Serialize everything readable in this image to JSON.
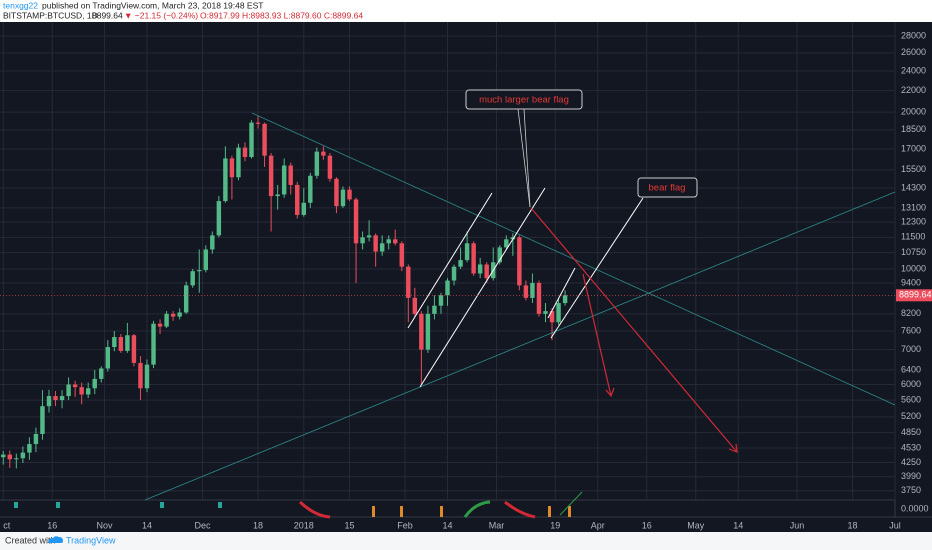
{
  "header": {
    "publisher": "tenxgg22",
    "published_text": "published on TradingView.com, March 23, 2018 19:48 EST",
    "symbol": "BITSTAMP:BTCUSD, 1D",
    "last": "8899.64",
    "change": "▼ −21.15 (−0.24%)",
    "ohlc": "O:8917.99 H:8983.93 L:8879.60 C:8899.64"
  },
  "footer": {
    "created": "Created with",
    "brand": "TradingView"
  },
  "chart_data": {
    "type": "candlestick",
    "log_scale": true,
    "grid": true,
    "up_color": "#53b987",
    "down_color": "#eb4d5c",
    "annotations": [
      "much larger bear flag",
      "bear flag"
    ],
    "indicator_label": "0.0000",
    "last_price": {
      "value": 8899.64,
      "label": "8899.64"
    },
    "xlim": [
      "2017-09-30",
      "2018-07-01"
    ],
    "xticks": [
      {
        "value": "2017-10-01",
        "label": "ct"
      },
      {
        "value": "2017-10-16",
        "label": "16"
      },
      {
        "value": "2017-11-01",
        "label": "Nov"
      },
      {
        "value": "2017-11-14",
        "label": "14"
      },
      {
        "value": "2017-12-01",
        "label": "Dec"
      },
      {
        "value": "2017-12-18",
        "label": "18"
      },
      {
        "value": "2018-01-01",
        "label": "2018"
      },
      {
        "value": "2018-01-15",
        "label": "15"
      },
      {
        "value": "2018-02-01",
        "label": "Feb"
      },
      {
        "value": "2018-02-14",
        "label": "14"
      },
      {
        "value": "2018-03-01",
        "label": "Mar"
      },
      {
        "value": "2018-03-19",
        "label": "19"
      },
      {
        "value": "2018-04-01",
        "label": "Apr"
      },
      {
        "value": "2018-04-16",
        "label": "16"
      },
      {
        "value": "2018-05-01",
        "label": "May"
      },
      {
        "value": "2018-05-14",
        "label": "14"
      },
      {
        "value": "2018-06-01",
        "label": "Jun"
      },
      {
        "value": "2018-06-18",
        "label": "18"
      },
      {
        "value": "2018-07-01",
        "label": "Jul"
      }
    ],
    "ylim": [
      3600,
      29800
    ],
    "yticks": [
      3750,
      3990,
      4250,
      4530,
      4850,
      5200,
      5600,
      6000,
      6400,
      7000,
      7600,
      8200,
      9400,
      10000,
      10750,
      11500,
      12300,
      13100,
      14300,
      15500,
      17000,
      18500,
      20000,
      22000,
      24000,
      26000,
      28000
    ],
    "x": [
      "2017-10-01",
      "2017-10-03",
      "2017-10-05",
      "2017-10-07",
      "2017-10-09",
      "2017-10-11",
      "2017-10-13",
      "2017-10-15",
      "2017-10-17",
      "2017-10-19",
      "2017-10-21",
      "2017-10-23",
      "2017-10-25",
      "2017-10-27",
      "2017-10-29",
      "2017-10-31",
      "2017-11-02",
      "2017-11-04",
      "2017-11-06",
      "2017-11-08",
      "2017-11-10",
      "2017-11-12",
      "2017-11-14",
      "2017-11-16",
      "2017-11-18",
      "2017-11-20",
      "2017-11-22",
      "2017-11-24",
      "2017-11-26",
      "2017-11-28",
      "2017-11-30",
      "2017-12-02",
      "2017-12-04",
      "2017-12-06",
      "2017-12-08",
      "2017-12-10",
      "2017-12-12",
      "2017-12-14",
      "2017-12-16",
      "2017-12-18",
      "2017-12-20",
      "2017-12-22",
      "2017-12-24",
      "2017-12-26",
      "2017-12-28",
      "2017-12-30",
      "2018-01-01",
      "2018-01-03",
      "2018-01-05",
      "2018-01-07",
      "2018-01-09",
      "2018-01-11",
      "2018-01-13",
      "2018-01-15",
      "2018-01-17",
      "2018-01-19",
      "2018-01-21",
      "2018-01-23",
      "2018-01-25",
      "2018-01-27",
      "2018-01-29",
      "2018-01-31",
      "2018-02-02",
      "2018-02-04",
      "2018-02-06",
      "2018-02-08",
      "2018-02-10",
      "2018-02-12",
      "2018-02-14",
      "2018-02-16",
      "2018-02-18",
      "2018-02-20",
      "2018-02-22",
      "2018-02-24",
      "2018-02-26",
      "2018-02-28",
      "2018-03-02",
      "2018-03-04",
      "2018-03-06",
      "2018-03-08",
      "2018-03-10",
      "2018-03-12",
      "2018-03-14",
      "2018-03-16",
      "2018-03-18",
      "2018-03-20",
      "2018-03-22"
    ],
    "open": [
      4350,
      4400,
      4310,
      4330,
      4440,
      4610,
      4820,
      5450,
      5700,
      5600,
      5700,
      6000,
      5930,
      5740,
      5900,
      6150,
      6440,
      7080,
      7400,
      6960,
      7460,
      6600,
      5900,
      6550,
      7850,
      7750,
      8200,
      8100,
      8250,
      9300,
      9900,
      9950,
      10900,
      11600,
      13500,
      16300,
      15000,
      17100,
      16400,
      19100,
      19000,
      16500,
      13800,
      13900,
      15800,
      14500,
      12700,
      13400,
      15100,
      16800,
      16500,
      14900,
      13200,
      14200,
      13600,
      11200,
      11500,
      11600,
      10800,
      11200,
      11400,
      11200,
      10100,
      8800,
      8200,
      7000,
      8200,
      8500,
      8900,
      9500,
      10100,
      10400,
      11200,
      9800,
      10200,
      9600,
      10300,
      11000,
      11400,
      11500,
      9300,
      8800,
      9400,
      8200,
      8300,
      7900,
      8600
    ],
    "high": [
      4470,
      4480,
      4420,
      4560,
      4750,
      4960,
      5850,
      5860,
      5830,
      5850,
      6190,
      6100,
      6050,
      6050,
      6400,
      6500,
      7300,
      7600,
      7500,
      7880,
      7500,
      6800,
      6700,
      7950,
      8000,
      8300,
      8300,
      8400,
      9450,
      10000,
      10900,
      11100,
      11800,
      13800,
      17200,
      16500,
      17400,
      17500,
      19300,
      19700,
      19100,
      16700,
      14500,
      16300,
      16000,
      14700,
      14300,
      15300,
      17100,
      17200,
      16700,
      15000,
      14400,
      14400,
      13700,
      11800,
      12400,
      11700,
      11600,
      11600,
      11900,
      11300,
      10200,
      9200,
      8300,
      8500,
      8900,
      9000,
      9600,
      10200,
      11000,
      11800,
      11300,
      10500,
      10300,
      11000,
      11100,
      11600,
      11700,
      11600,
      9500,
      9800,
      9500,
      8600,
      8400,
      8800,
      9100
    ],
    "low": [
      4210,
      4150,
      4140,
      4240,
      4300,
      4450,
      4700,
      5300,
      5450,
      5400,
      5600,
      5680,
      5500,
      5650,
      5750,
      6050,
      6350,
      6950,
      6900,
      6900,
      6500,
      5600,
      5800,
      6450,
      7500,
      7700,
      7950,
      8000,
      8200,
      9200,
      9000,
      9850,
      10700,
      11500,
      13400,
      13600,
      14800,
      16100,
      16300,
      18600,
      15700,
      11800,
      13000,
      13700,
      13900,
      12500,
      12600,
      13100,
      14900,
      16200,
      14700,
      12800,
      13100,
      13500,
      9400,
      10900,
      11300,
      10100,
      10600,
      10900,
      11100,
      9900,
      7900,
      8100,
      6000,
      6900,
      8000,
      8200,
      8500,
      9300,
      10000,
      10300,
      9700,
      9600,
      9400,
      9500,
      10200,
      10900,
      10600,
      9100,
      8700,
      8600,
      8100,
      7900,
      7300,
      7800,
      8500
    ],
    "close": [
      4400,
      4310,
      4330,
      4440,
      4610,
      4820,
      5450,
      5700,
      5600,
      5700,
      6000,
      5930,
      5740,
      5900,
      6150,
      6440,
      7080,
      7400,
      6960,
      7460,
      6600,
      5900,
      6550,
      7850,
      7750,
      8200,
      8100,
      8250,
      9300,
      9900,
      9950,
      10900,
      11600,
      13500,
      16300,
      15000,
      17100,
      16400,
      19100,
      19000,
      16500,
      13800,
      13900,
      15800,
      14500,
      12700,
      13400,
      15100,
      16800,
      16500,
      14900,
      13200,
      14200,
      13600,
      11200,
      11500,
      11600,
      10800,
      11200,
      11400,
      11200,
      10100,
      8800,
      8200,
      7000,
      8200,
      8500,
      8900,
      9500,
      10100,
      10400,
      11200,
      9800,
      10200,
      9600,
      10300,
      11000,
      11400,
      11500,
      9300,
      8800,
      9400,
      8200,
      8300,
      7900,
      8600,
      8900
    ]
  }
}
